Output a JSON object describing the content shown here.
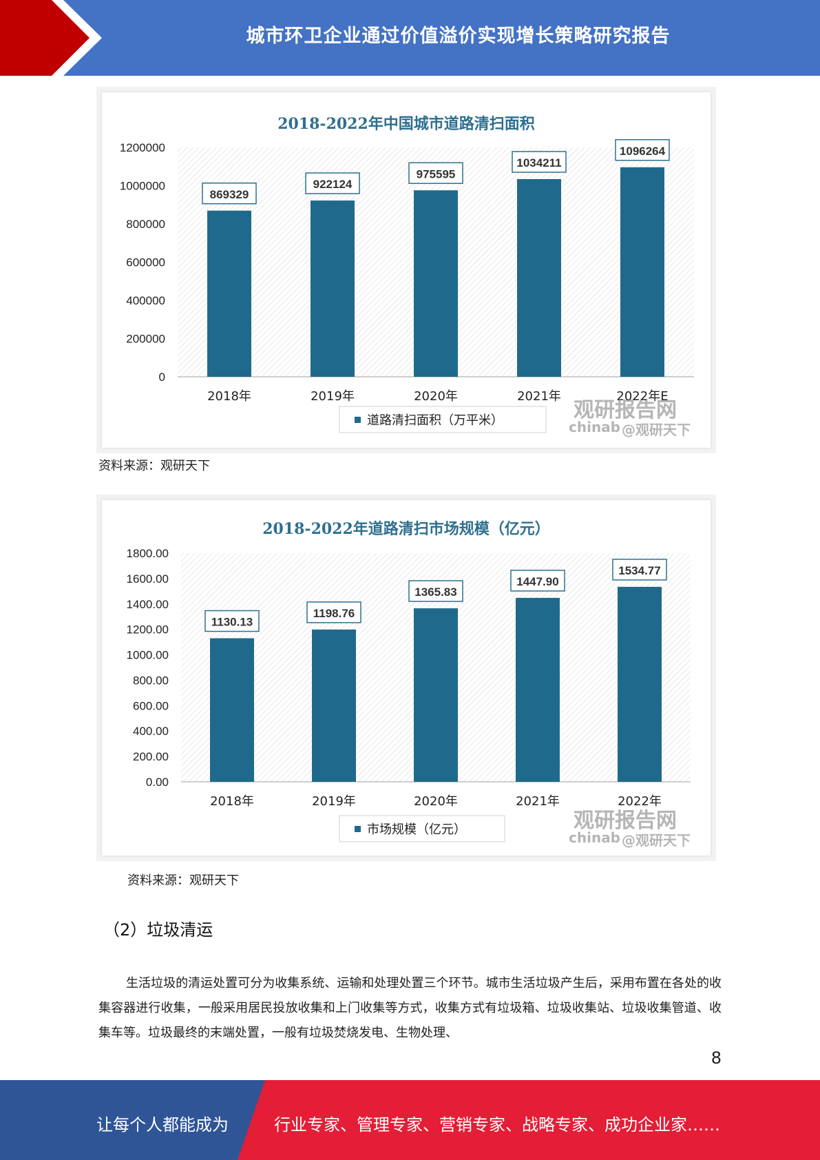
{
  "header": {
    "title": "城市环卫企业通过价值溢价实现增长策略研究报告"
  },
  "colors": {
    "header_blue": "#4472c4",
    "header_red": "#c00000",
    "bar": "#1f6a8c",
    "footer_blue": "#2f5597",
    "footer_red": "#e31e36"
  },
  "watermark": {
    "brand": "观研报告网",
    "domain_prefix": "chinab",
    "handle": "@观研天下"
  },
  "chart_data": [
    {
      "type": "bar",
      "title": "2018-2022年中国城市道路清扫面积",
      "categories": [
        "2018年",
        "2019年",
        "2020年",
        "2021年",
        "2022年E"
      ],
      "series": [
        {
          "name": "道路清扫面积（万平米）",
          "values": [
            869329,
            922124,
            975595,
            1034211,
            1096264
          ]
        }
      ],
      "value_labels": [
        "869329",
        "922124",
        "975595",
        "1034211",
        "1096264"
      ],
      "y_ticks": [
        "0",
        "200000",
        "400000",
        "600000",
        "800000",
        "1000000",
        "1200000"
      ],
      "ylim": [
        0,
        1200000
      ],
      "legend": "bottom"
    },
    {
      "type": "bar",
      "title": "2018-2022年道路清扫市场规模（亿元）",
      "categories": [
        "2018年",
        "2019年",
        "2020年",
        "2021年",
        "2022年"
      ],
      "series": [
        {
          "name": "市场规模（亿元）",
          "values": [
            1130.13,
            1198.76,
            1365.83,
            1447.9,
            1534.77
          ]
        }
      ],
      "value_labels": [
        "1130.13",
        "1198.76",
        "1365.83",
        "1447.90",
        "1534.77"
      ],
      "y_ticks": [
        "0.00",
        "200.00",
        "400.00",
        "600.00",
        "800.00",
        "1000.00",
        "1200.00",
        "1400.00",
        "1600.00",
        "1800.00"
      ],
      "ylim": [
        0,
        1800
      ],
      "legend": "bottom"
    }
  ],
  "sources": [
    "资料来源：观研天下",
    "资料来源：观研天下"
  ],
  "section": {
    "heading": "（2）垃圾清运"
  },
  "paragraph": "生活垃圾的清运处置可分为收集系统、运输和处理处置三个环节。城市生活垃圾产生后，采用布置在各处的收集容器进行收集，一般采用居民投放收集和上门收集等方式，收集方式有垃圾箱、垃圾收集站、垃圾收集管道、收集车等。垃圾最终的末端处置，一般有垃圾焚烧发电、生物处理、",
  "page_number": "8",
  "footer": {
    "left": "让每个人都能成为",
    "right": "行业专家、管理专家、营销专家、战略专家、成功企业家……"
  }
}
